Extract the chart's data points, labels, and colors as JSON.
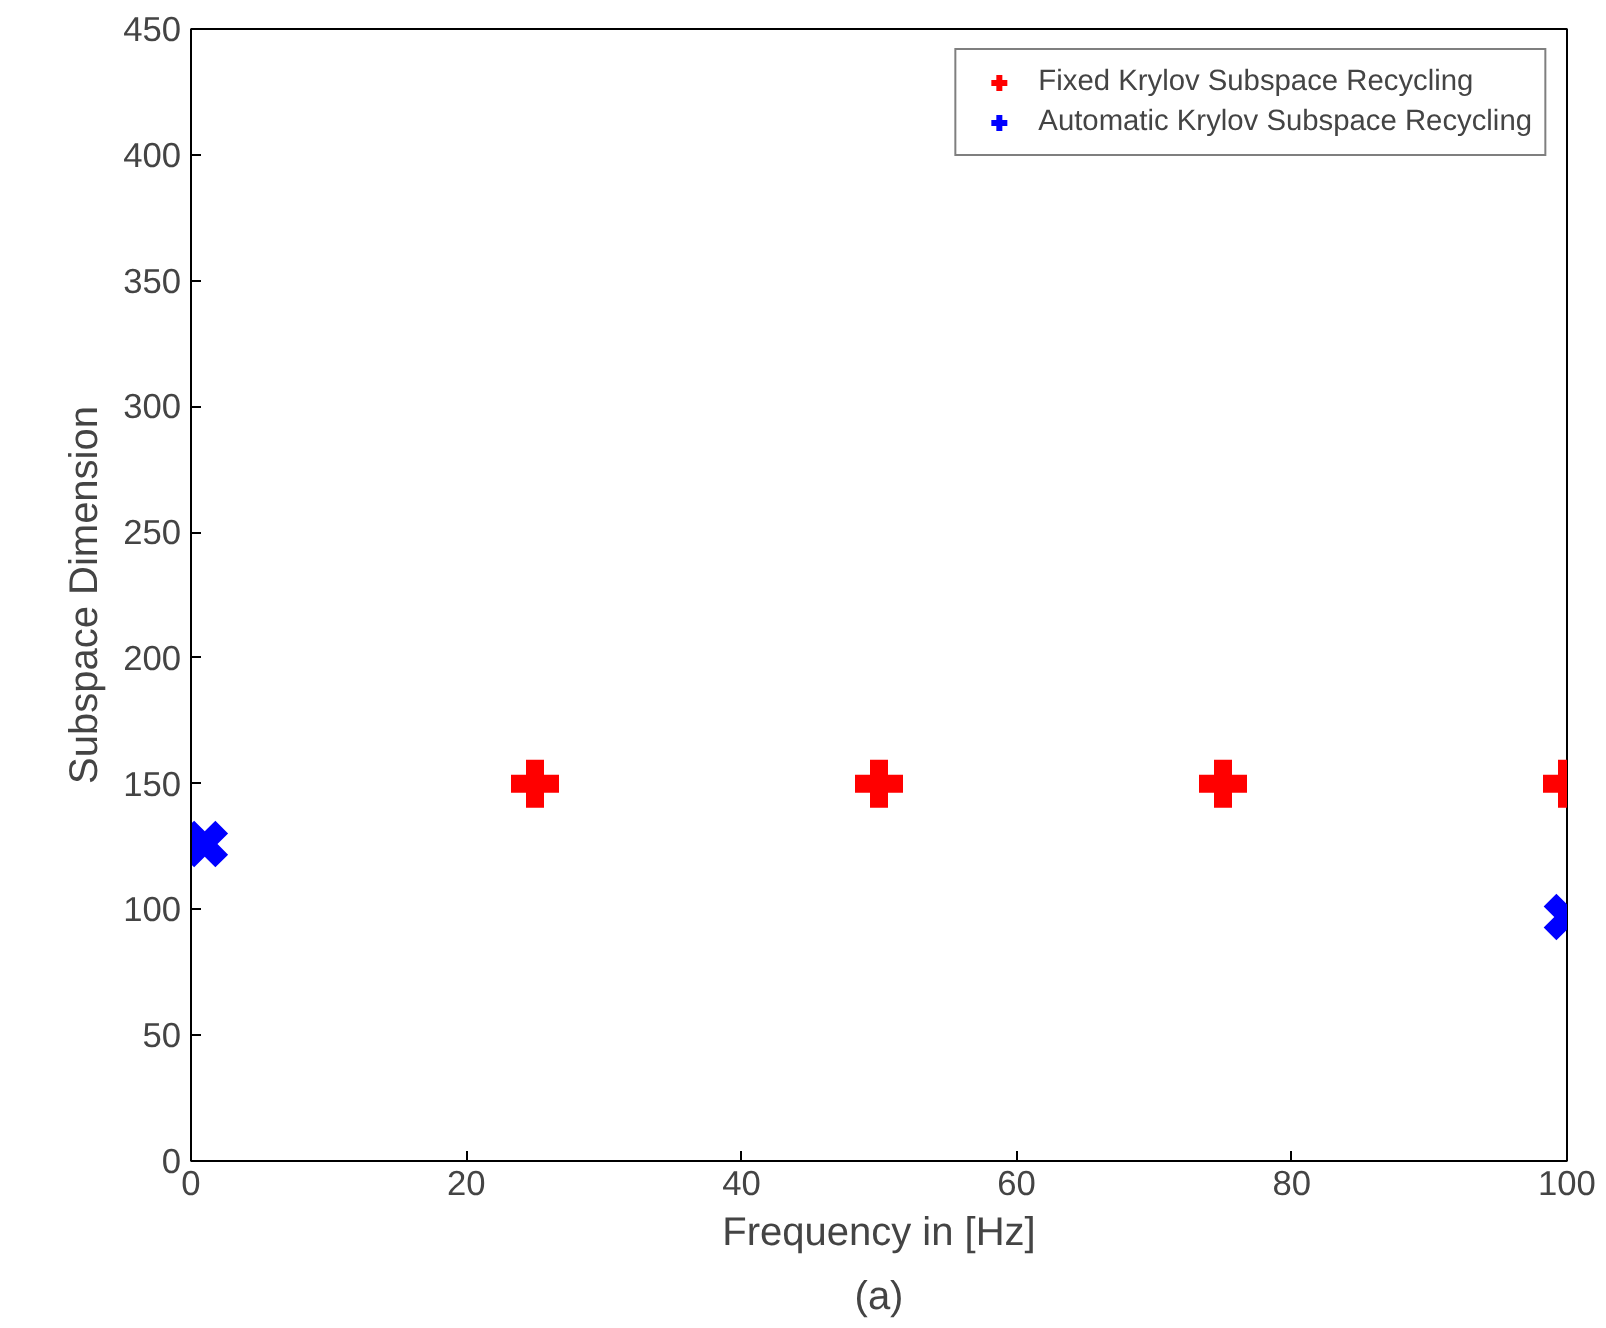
{
  "chart_data": {
    "type": "scatter",
    "xlabel": "Frequency in [Hz]",
    "ylabel": "Subspace Dimension",
    "annotations": [
      "(a)"
    ],
    "xlim": [
      0,
      100
    ],
    "xticks": [
      0,
      20,
      40,
      60,
      80,
      100
    ],
    "ylim": [
      0,
      450
    ],
    "yticks": [
      0,
      50,
      100,
      150,
      200,
      250,
      300,
      350,
      400,
      450
    ],
    "grid": false,
    "legend": "top right",
    "series": [
      {
        "name": "Fixed Krylov Subspace Recycling",
        "color": "#ff0000",
        "marker": "cross",
        "x": [
          25,
          50,
          75,
          100
        ],
        "values": [
          150,
          150,
          150,
          150
        ]
      },
      {
        "name": "Automatic Krylov Subspace Recycling",
        "color": "#0000ff",
        "marker": "x",
        "x": [
          1,
          100
        ],
        "values": [
          126,
          97
        ]
      }
    ]
  }
}
